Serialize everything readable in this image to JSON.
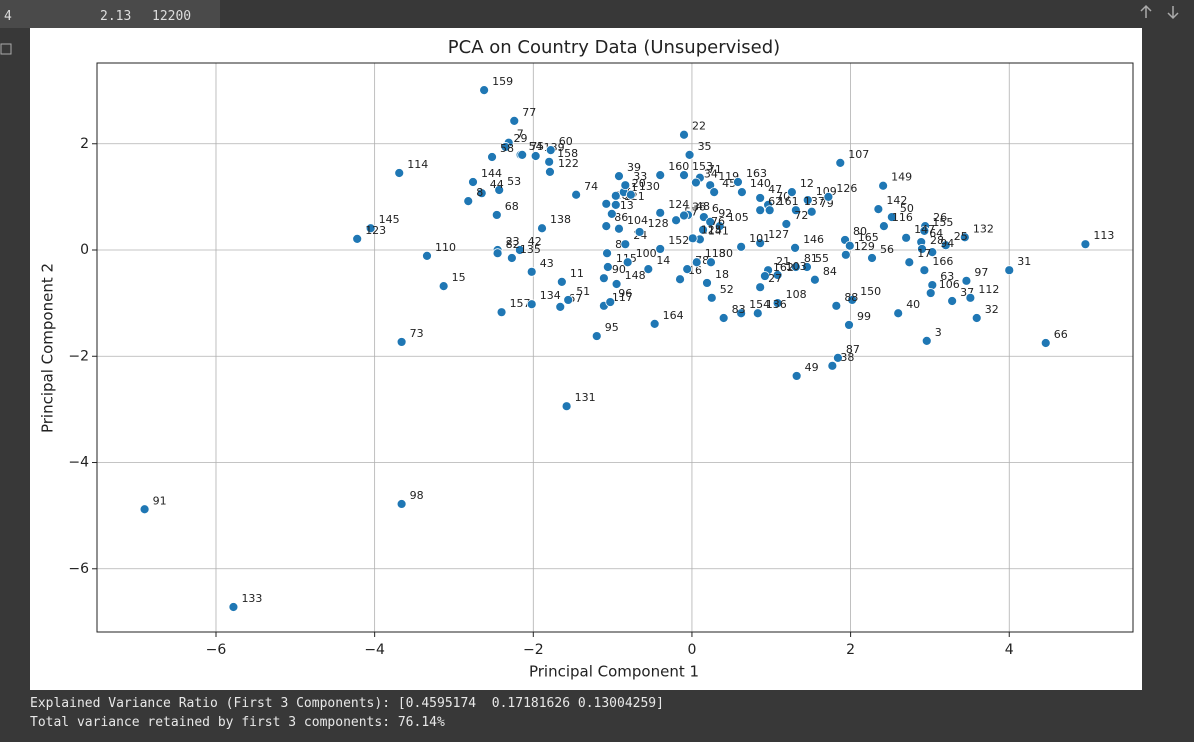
{
  "top_table": {
    "row": [
      "4",
      "2.13",
      "12200"
    ]
  },
  "chart_data": {
    "type": "scatter",
    "title": "PCA on Country Data (Unsupervised)",
    "x_label": "Principal Component 1",
    "y_label": "Principal Component 2",
    "xlim": [
      -7.5,
      5.56
    ],
    "ylim": [
      -7.19,
      3.52
    ],
    "xticks": [
      {
        "value": -6,
        "label": "−6"
      },
      {
        "value": -4,
        "label": "−4"
      },
      {
        "value": -2,
        "label": "−2"
      },
      0,
      2,
      4
    ],
    "yticks": [
      {
        "value": -6,
        "label": "−6"
      },
      {
        "value": -4,
        "label": "−4"
      },
      {
        "value": -2,
        "label": "−2"
      },
      0,
      2
    ],
    "grid": true,
    "color": "#1f77b4",
    "labels": [
      "159",
      "77",
      "7",
      "29",
      "54",
      "75",
      "139",
      "60",
      "158",
      "122",
      "114",
      "58",
      "53",
      "44",
      "8",
      "144",
      "68",
      "145",
      "123",
      "110",
      "15",
      "73",
      "91",
      "98",
      "133",
      "131",
      "157",
      "67",
      "134",
      "51",
      "43",
      "23",
      "42",
      "135",
      "82",
      "138",
      "74",
      "95",
      "117",
      "96",
      "11",
      "90",
      "115",
      "148",
      "100",
      "14",
      "164",
      "85",
      "24",
      "86",
      "104",
      "128",
      "13",
      "102",
      "121",
      "41",
      "20",
      "130",
      "33",
      "39",
      "160",
      "153",
      "22",
      "35",
      "71",
      "34",
      "124",
      "57",
      "48",
      "6",
      "92",
      "105",
      "76",
      "119",
      "45",
      "163",
      "140",
      "47",
      "70",
      "62",
      "161",
      "12",
      "109",
      "137",
      "79",
      "107",
      "126",
      "72",
      "146",
      "127",
      "113",
      "132",
      "149",
      "142",
      "50",
      "116",
      "26",
      "155",
      "147",
      "64",
      "28",
      "25",
      "94",
      "31",
      "97",
      "166",
      "17",
      "63",
      "106",
      "37",
      "112",
      "32",
      "40",
      "3",
      "66",
      "150",
      "99",
      "88",
      "87",
      "38",
      "49",
      "84",
      "55",
      "81",
      "21",
      "103",
      "162",
      "108",
      "27",
      "136",
      "154",
      "83",
      "52",
      "18",
      "16",
      "78",
      "118",
      "30",
      "129",
      "80",
      "165",
      "56",
      "101",
      "152",
      "141",
      "36",
      "125"
    ],
    "x": [
      -2.62,
      -2.24,
      -2.31,
      -2.35,
      -2.16,
      -2.14,
      -1.97,
      -1.78,
      -1.8,
      -1.79,
      -3.69,
      -2.52,
      -2.43,
      -2.65,
      -2.82,
      -2.76,
      -2.46,
      -4.05,
      -4.22,
      -3.34,
      -3.13,
      -3.66,
      -6.9,
      -3.66,
      -5.78,
      -1.58,
      -2.4,
      -1.66,
      -2.02,
      -1.56,
      -2.02,
      -2.45,
      -2.17,
      -2.27,
      -2.45,
      -1.89,
      -1.46,
      -1.2,
      -1.11,
      -1.03,
      -1.64,
      -1.11,
      -1.06,
      -0.95,
      -0.81,
      -0.55,
      -0.47,
      -1.07,
      -0.84,
      -1.08,
      -0.92,
      -0.66,
      -1.01,
      -1.08,
      -0.96,
      -0.96,
      -0.86,
      -0.77,
      -0.84,
      -0.92,
      -0.4,
      -0.1,
      -0.1,
      -0.03,
      0.1,
      0.05,
      -0.4,
      -0.2,
      -0.05,
      0.15,
      0.23,
      0.35,
      0.14,
      0.23,
      0.28,
      0.58,
      0.63,
      0.86,
      0.96,
      0.86,
      0.98,
      1.26,
      1.46,
      1.31,
      1.51,
      1.87,
      1.72,
      1.19,
      1.3,
      0.86,
      4.96,
      3.44,
      2.41,
      2.35,
      2.52,
      2.42,
      2.94,
      2.93,
      2.7,
      2.89,
      2.9,
      3.2,
      3.03,
      4.0,
      3.46,
      2.93,
      2.74,
      3.03,
      3.01,
      3.28,
      3.51,
      3.59,
      2.6,
      2.96,
      4.46,
      2.02,
      1.98,
      1.82,
      1.84,
      1.77,
      1.32,
      1.55,
      1.45,
      1.31,
      0.96,
      1.08,
      0.92,
      1.08,
      0.86,
      0.83,
      0.62,
      0.4,
      0.25,
      0.19,
      -0.15,
      -0.06,
      0.06,
      0.24,
      1.94,
      1.93,
      1.99,
      2.27,
      0.62,
      -0.4,
      0.1,
      -0.1,
      0.01
    ],
    "values": [
      3.01,
      2.43,
      2.02,
      1.94,
      1.79,
      1.79,
      1.77,
      1.88,
      1.66,
      1.47,
      1.45,
      1.75,
      1.13,
      1.07,
      0.92,
      1.28,
      0.66,
      0.41,
      0.21,
      -0.11,
      -0.68,
      -1.73,
      -4.88,
      -4.78,
      -6.72,
      -2.94,
      -1.17,
      -1.07,
      -1.02,
      -0.94,
      -0.41,
      0.0,
      0.0,
      -0.15,
      -0.06,
      0.41,
      1.04,
      -1.62,
      -1.05,
      -0.98,
      -0.6,
      -0.53,
      -0.32,
      -0.64,
      -0.23,
      -0.36,
      -1.39,
      -0.06,
      0.11,
      0.45,
      0.4,
      0.34,
      0.68,
      0.87,
      0.85,
      1.02,
      1.09,
      1.04,
      1.22,
      1.39,
      1.41,
      1.41,
      2.17,
      1.79,
      1.36,
      1.27,
      0.7,
      0.56,
      0.66,
      0.62,
      0.53,
      0.45,
      0.38,
      1.22,
      1.09,
      1.28,
      1.09,
      0.98,
      0.85,
      0.75,
      0.75,
      1.09,
      0.94,
      0.75,
      0.72,
      1.64,
      1.0,
      0.49,
      0.04,
      0.13,
      0.11,
      0.24,
      1.21,
      0.77,
      0.62,
      0.45,
      0.45,
      0.36,
      0.23,
      0.15,
      0.02,
      0.09,
      -0.04,
      -0.38,
      -0.58,
      -0.38,
      -0.23,
      -0.66,
      -0.81,
      -0.96,
      -0.9,
      -1.28,
      -1.19,
      -1.71,
      -1.75,
      -0.94,
      -1.41,
      -1.05,
      -2.03,
      -2.18,
      -2.37,
      -0.56,
      -0.32,
      -0.32,
      -0.38,
      -0.47,
      -0.49,
      -1.0,
      -0.7,
      -1.19,
      -1.19,
      -1.28,
      -0.9,
      -0.62,
      -0.55,
      -0.36,
      -0.23,
      -0.23,
      -0.09,
      0.19,
      0.08,
      -0.15,
      0.06,
      0.02,
      0.2,
      0.65,
      0.22
    ]
  },
  "output": [
    "Explained Variance Ratio (First 3 Components): [0.4595174  0.17181626 0.13004259]",
    "Total variance retained by first 3 components: 76.14%"
  ]
}
